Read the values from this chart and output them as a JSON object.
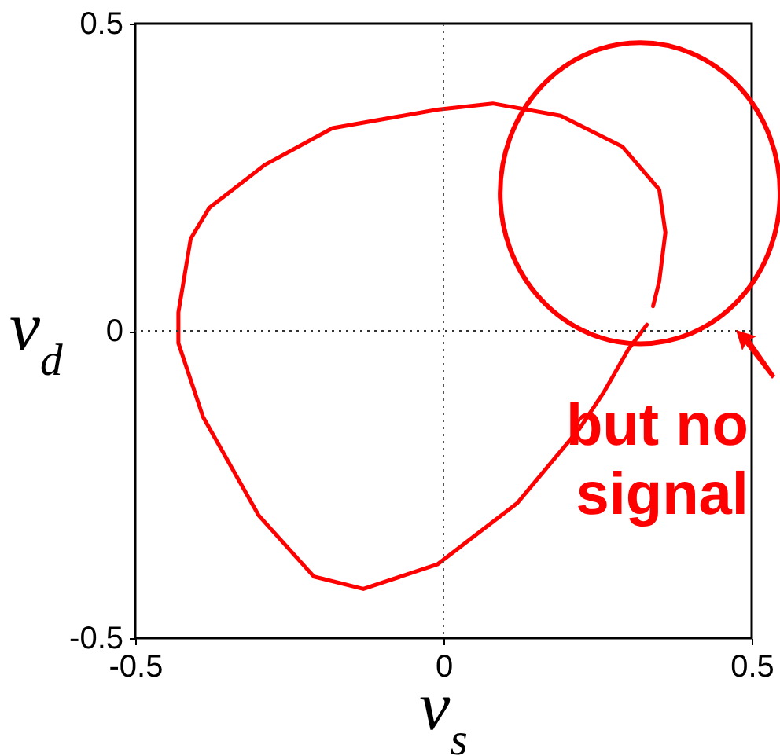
{
  "chart_data": {
    "type": "line",
    "xlabel": "ν$_{s}$",
    "ylabel": "ν$_{d}$",
    "xlim": [
      -0.5,
      0.5
    ],
    "ylim": [
      -0.5,
      0.5
    ],
    "xticks": [
      -0.5,
      0,
      0.5
    ],
    "yticks": [
      -0.5,
      0,
      0.5
    ],
    "series": [
      {
        "color": "#ff0000",
        "x": [
          0.33,
          0.3,
          0.26,
          0.22,
          0.12,
          -0.01,
          -0.13,
          -0.21,
          -0.3,
          -0.39,
          -0.43,
          -0.43,
          -0.41,
          -0.38,
          -0.29,
          -0.18,
          -0.01,
          0.08,
          0.19,
          0.29,
          0.35,
          0.36,
          0.35,
          0.34
        ],
        "values": [
          0.01,
          -0.03,
          -0.1,
          -0.16,
          -0.28,
          -0.38,
          -0.42,
          -0.4,
          -0.3,
          -0.14,
          -0.02,
          0.03,
          0.15,
          0.2,
          0.27,
          0.33,
          0.36,
          0.37,
          0.35,
          0.3,
          0.23,
          0.16,
          0.08,
          0.04
        ]
      }
    ],
    "ref_lines": [
      {
        "axis": "x",
        "value": 0,
        "line_style": "dotted",
        "color": "#555555"
      },
      {
        "axis": "y",
        "value": 0,
        "line_style": "dotted",
        "color": "#333333"
      }
    ],
    "annotations": [
      "but no signal"
    ],
    "grid": false,
    "marker": "none",
    "line_style": "solid"
  }
}
